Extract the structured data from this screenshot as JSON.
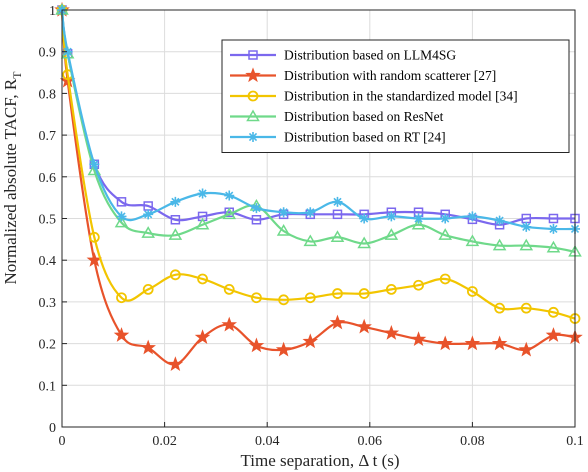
{
  "chart_data": {
    "type": "line",
    "xlabel": "Time separation, Δ t (s)",
    "ylabel": "Normalized absolute TACF, R",
    "ylabel_sub": "T",
    "xlim": [
      0,
      0.1
    ],
    "ylim": [
      0,
      1
    ],
    "xticks": [
      "0",
      "0.02",
      "0.04",
      "0.06",
      "0.08",
      "0.1"
    ],
    "yticks": [
      "0",
      "0.1",
      "0.2",
      "0.3",
      "0.4",
      "0.5",
      "0.6",
      "0.7",
      "0.8",
      "0.9",
      "1"
    ],
    "grid": true,
    "legend_position": "top-right",
    "x_markers": [
      0,
      0.0011,
      0.0063,
      0.0116,
      0.0168,
      0.0221,
      0.0274,
      0.0326,
      0.0379,
      0.0432,
      0.0484,
      0.0537,
      0.0589,
      0.0642,
      0.0695,
      0.0747,
      0.08,
      0.0853,
      0.0905,
      0.0958,
      0.1
    ],
    "series": [
      {
        "name": "Distribution based on LLM4SG",
        "color": "#7B68EE",
        "marker": "square",
        "values": [
          1.0,
          0.895,
          0.63,
          0.54,
          0.53,
          0.497,
          0.505,
          0.515,
          0.497,
          0.51,
          0.51,
          0.51,
          0.51,
          0.515,
          0.515,
          0.51,
          0.498,
          0.485,
          0.5,
          0.5,
          0.5
        ]
      },
      {
        "name": "Distribution with random scatterer [27]",
        "color": "#E8532B",
        "marker": "star",
        "values": [
          1.0,
          0.83,
          0.4,
          0.22,
          0.19,
          0.15,
          0.215,
          0.245,
          0.195,
          0.185,
          0.205,
          0.25,
          0.24,
          0.225,
          0.21,
          0.2,
          0.2,
          0.2,
          0.185,
          0.22,
          0.215
        ]
      },
      {
        "name": "Distribution in the standardized model [34]",
        "color": "#F2C500",
        "marker": "circle",
        "values": [
          1.0,
          0.845,
          0.455,
          0.31,
          0.33,
          0.365,
          0.355,
          0.33,
          0.31,
          0.305,
          0.31,
          0.32,
          0.32,
          0.33,
          0.34,
          0.355,
          0.325,
          0.285,
          0.285,
          0.275,
          0.26
        ]
      },
      {
        "name": "Distribution based on ResNet",
        "color": "#6FD98A",
        "marker": "triangle",
        "values": [
          1.0,
          0.895,
          0.615,
          0.49,
          0.465,
          0.46,
          0.485,
          0.51,
          0.53,
          0.47,
          0.445,
          0.455,
          0.44,
          0.46,
          0.485,
          0.46,
          0.445,
          0.435,
          0.435,
          0.43,
          0.42
        ]
      },
      {
        "name": "Distribution based on RT [24]",
        "color": "#4AB8E8",
        "marker": "asterisk",
        "values": [
          1.0,
          0.9,
          0.63,
          0.505,
          0.51,
          0.54,
          0.56,
          0.555,
          0.525,
          0.515,
          0.515,
          0.54,
          0.5,
          0.505,
          0.5,
          0.5,
          0.505,
          0.495,
          0.48,
          0.475,
          0.475
        ]
      }
    ]
  }
}
